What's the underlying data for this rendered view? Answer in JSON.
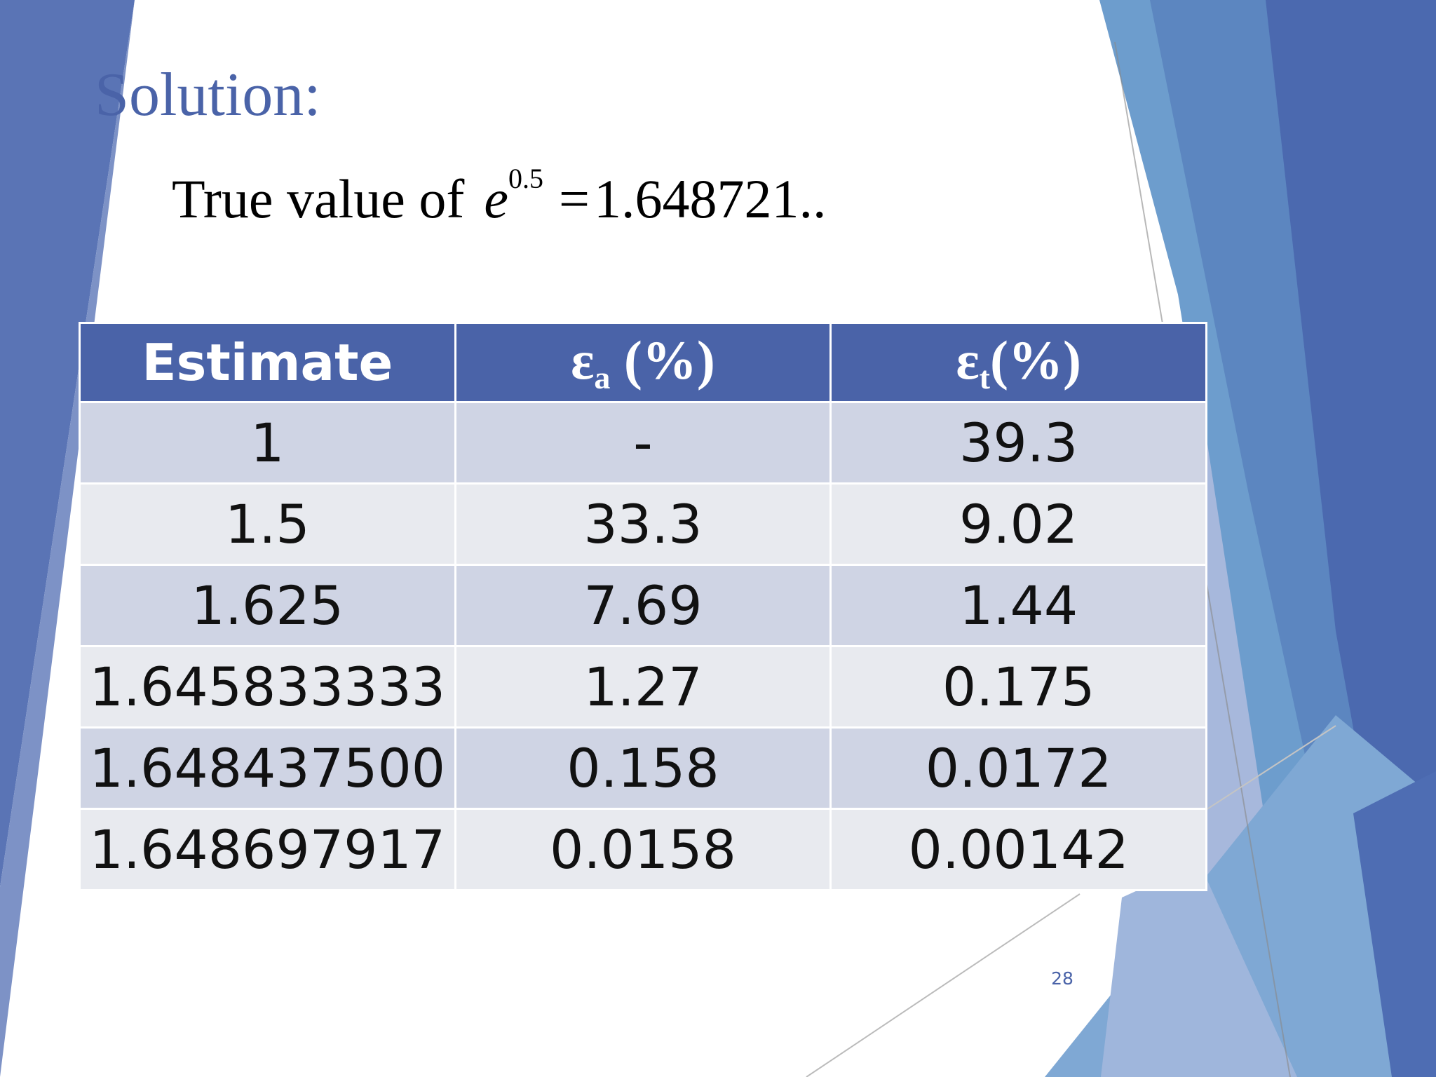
{
  "slide": {
    "title": "Solution:",
    "equation": {
      "label": "True value of",
      "variable": "e",
      "exponent": "0.5",
      "equals": "=",
      "value": "1.648721.."
    },
    "page_number": "28"
  },
  "table": {
    "headers": {
      "estimate": "Estimate",
      "ea_symbol": "ε",
      "ea_sub": "a",
      "ea_unit": " (%)",
      "et_symbol": "ε",
      "et_sub": "t",
      "et_unit": "(%)"
    },
    "rows": [
      {
        "estimate": "1",
        "ea": "-",
        "et": "39.3"
      },
      {
        "estimate": "1.5",
        "ea": "33.3",
        "et": "9.02"
      },
      {
        "estimate": "1.625",
        "ea": "7.69",
        "et": "1.44"
      },
      {
        "estimate": "1.645833333",
        "ea": "1.27",
        "et": "0.175"
      },
      {
        "estimate": "1.648437500",
        "ea": "0.158",
        "et": "0.0172"
      },
      {
        "estimate": "1.648697917",
        "ea": "0.0158",
        "et": "0.00142"
      }
    ]
  },
  "colors": {
    "accent": "#4a63a8",
    "row_odd": "#cfd4e4",
    "row_even": "#e8eaef"
  }
}
